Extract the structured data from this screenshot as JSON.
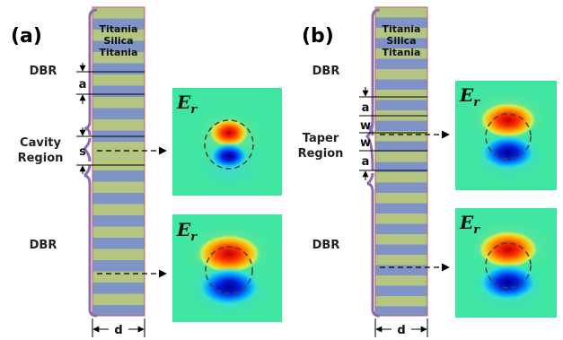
{
  "panels": [
    {
      "label": "(a)",
      "materials": [
        "Titania",
        "Silica",
        "Titania"
      ],
      "regions": {
        "top": "DBR",
        "middle_line1": "Cavity",
        "middle_line2": "Region",
        "bottom": "DBR"
      },
      "dimensions": {
        "period": "a",
        "cavity": "s",
        "width": "d"
      },
      "field_maps": [
        {
          "symbol": "E",
          "subscript": "r"
        },
        {
          "symbol": "E",
          "subscript": "r"
        }
      ]
    },
    {
      "label": "(b)",
      "materials": [
        "Titania",
        "Silica",
        "Titania"
      ],
      "regions": {
        "top": "DBR",
        "middle_line1": "Taper",
        "middle_line2": "Region",
        "bottom": "DBR"
      },
      "dimensions": {
        "period_top": "a",
        "taper_1": "w",
        "taper_2": "w",
        "period_bottom": "a",
        "width": "d"
      },
      "field_maps": [
        {
          "symbol": "E",
          "subscript": "r"
        },
        {
          "symbol": "E",
          "subscript": "r"
        }
      ]
    }
  ],
  "colors": {
    "titania": "#b3c580",
    "silica": "#7e92c6",
    "bracket": "#8b6cb0",
    "field_background": "#3fe6a2"
  }
}
